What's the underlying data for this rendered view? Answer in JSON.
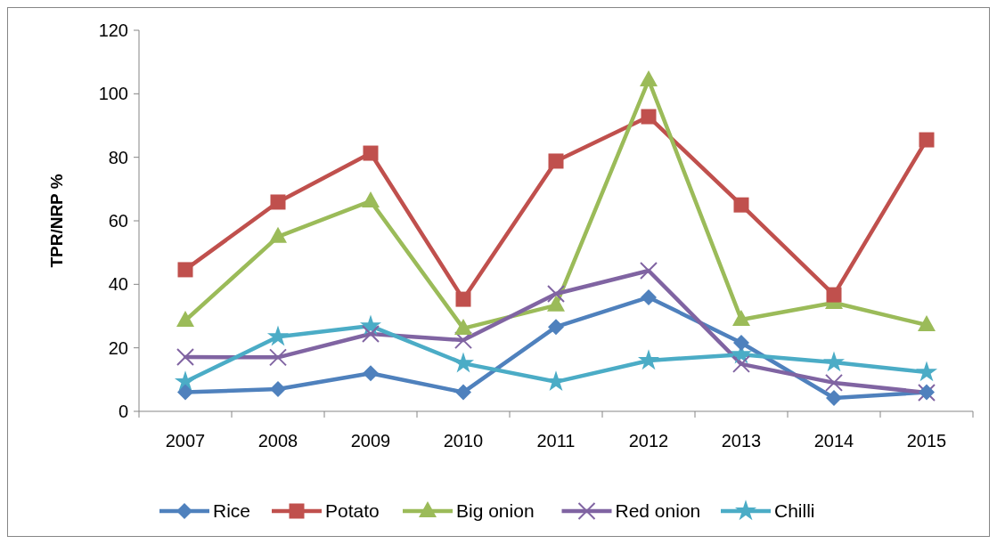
{
  "chart_data": {
    "type": "line",
    "ylabel": "TPR/NRP %",
    "categories": [
      "2007",
      "2008",
      "2009",
      "2010",
      "2011",
      "2012",
      "2013",
      "2014",
      "2015"
    ],
    "series": [
      {
        "name": "Rice",
        "color": "#4f81bd",
        "marker": "diamond",
        "values": [
          6,
          7,
          12,
          6,
          26.6,
          35.9,
          21.6,
          4.2,
          6
        ]
      },
      {
        "name": "Potato",
        "color": "#c0504d",
        "marker": "square",
        "values": [
          44.6,
          65.9,
          81.3,
          35.3,
          78.8,
          92.8,
          65,
          36.7,
          85.5
        ]
      },
      {
        "name": "Big onion",
        "color": "#9bbb59",
        "marker": "triangle",
        "values": [
          28.6,
          55,
          66.2,
          26.1,
          33.4,
          104.3,
          28.9,
          34.2,
          27.2
        ]
      },
      {
        "name": "Red onion",
        "color": "#8064a2",
        "marker": "cross",
        "values": [
          17.1,
          17,
          24.4,
          22.4,
          37,
          44.3,
          14.9,
          9,
          5.9
        ]
      },
      {
        "name": "Chilli",
        "color": "#4bacc6",
        "marker": "star",
        "values": [
          9.3,
          23.5,
          26.9,
          15.1,
          9.3,
          16,
          17.9,
          15.4,
          12.3
        ]
      }
    ],
    "ylim": [
      0,
      120
    ],
    "yticks": [
      0,
      20,
      40,
      60,
      80,
      100,
      120
    ],
    "legend": "bottom"
  }
}
